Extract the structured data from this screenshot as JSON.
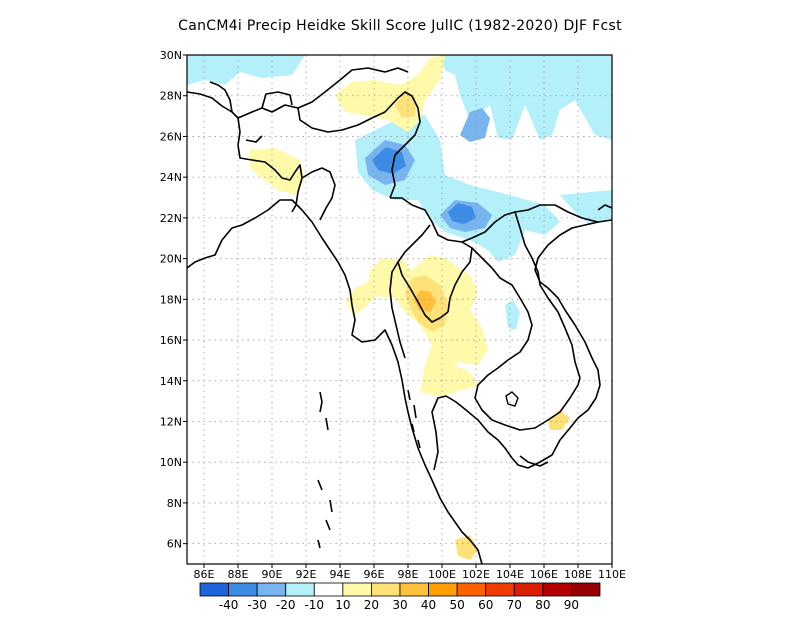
{
  "title": "CanCM4i Precip Heidke Skill Score JulIC (1982-2020) DJF Fcst",
  "map": {
    "lon_range": [
      85,
      110
    ],
    "lat_range": [
      5,
      30
    ],
    "lon_ticks": [
      "86E",
      "88E",
      "90E",
      "92E",
      "94E",
      "96E",
      "98E",
      "100E",
      "102E",
      "104E",
      "106E",
      "108E",
      "110E"
    ],
    "lat_ticks": [
      "30N",
      "28N",
      "26N",
      "24N",
      "22N",
      "20N",
      "18N",
      "16N",
      "14N",
      "12N",
      "10N",
      "8N",
      "6N"
    ],
    "grid": "dotted",
    "coastline_color": "#000000"
  },
  "colorbar": {
    "colors": [
      "#1e64dc",
      "#3c8ce6",
      "#78b4f0",
      "#b4f0fa",
      "#ffffff",
      "#fffaaa",
      "#ffe178",
      "#ffc03c",
      "#ffa000",
      "#ff6000",
      "#f03c00",
      "#dc1e00",
      "#b40000",
      "#960000"
    ],
    "labels": [
      "-40",
      "-30",
      "-20",
      "-10",
      "10",
      "20",
      "30",
      "40",
      "50",
      "60",
      "70",
      "80",
      "90"
    ]
  },
  "skill_areas": [
    {
      "name": "north-cyan-band",
      "level": -10,
      "color": "#b4f0fa"
    },
    {
      "name": "north-west-cyan",
      "level": -10,
      "color": "#b4f0fa"
    },
    {
      "name": "yunnan-cyan",
      "level": -10,
      "color": "#b4f0fa"
    },
    {
      "name": "east-cyan",
      "level": -10,
      "color": "#b4f0fa"
    },
    {
      "name": "blue-24n",
      "level": -20,
      "color": "#78b4f0"
    },
    {
      "name": "dark-blue-24n",
      "level": -30,
      "color": "#3c8ce6"
    },
    {
      "name": "blue-27n",
      "level": -20,
      "color": "#78b4f0"
    },
    {
      "name": "blue-22n",
      "level": -20,
      "color": "#78b4f0"
    },
    {
      "name": "dark-blue-22n",
      "level": -30,
      "color": "#3c8ce6"
    },
    {
      "name": "laos-cyan",
      "level": -10,
      "color": "#b4f0fa"
    },
    {
      "name": "north-yellow",
      "level": 10,
      "color": "#fffaaa"
    },
    {
      "name": "north-yellow-core",
      "level": 20,
      "color": "#ffe178"
    },
    {
      "name": "bangladesh-yellow",
      "level": 10,
      "color": "#fffaaa"
    },
    {
      "name": "thailand-yellow",
      "level": 10,
      "color": "#fffaaa"
    },
    {
      "name": "thailand-yellow-2",
      "level": 20,
      "color": "#ffe178"
    },
    {
      "name": "thailand-orange",
      "level": 30,
      "color": "#ffc03c"
    },
    {
      "name": "gulf-yellow",
      "level": 10,
      "color": "#fffaaa"
    },
    {
      "name": "gulf-yellow-2",
      "level": 20,
      "color": "#ffe178"
    },
    {
      "name": "south-yellow",
      "level": 20,
      "color": "#ffe178"
    }
  ]
}
